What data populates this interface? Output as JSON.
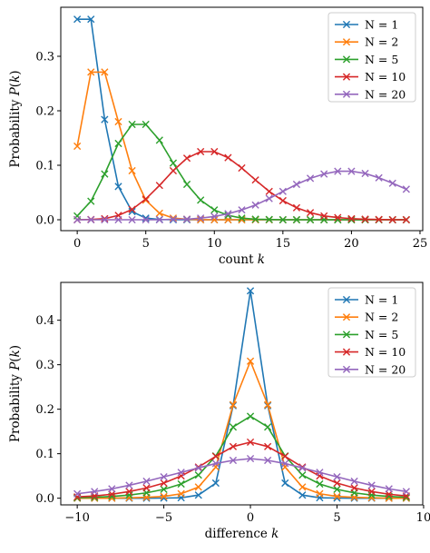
{
  "chart_data": [
    {
      "type": "line",
      "xlabel_text": "count ",
      "xlabel_var": "k",
      "ylabel_text": "Probability ",
      "ylabel_var": "P",
      "ylabel_arg": "k",
      "xlim": [
        -1.2,
        25.2
      ],
      "ylim": [
        -0.02,
        0.39
      ],
      "xticks": [
        0,
        5,
        10,
        15,
        20,
        25
      ],
      "xtick_labels": [
        "0",
        "5",
        "10",
        "15",
        "20",
        "25"
      ],
      "yticks": [
        0.0,
        0.1,
        0.2,
        0.3
      ],
      "ytick_labels": [
        "0.0",
        "0.1",
        "0.2",
        "0.3"
      ],
      "legend_position": "top-right",
      "grid": false,
      "x": [
        0,
        1,
        2,
        3,
        4,
        5,
        6,
        7,
        8,
        9,
        10,
        11,
        12,
        13,
        14,
        15,
        16,
        17,
        18,
        19,
        20,
        21,
        22,
        23,
        24
      ],
      "series": [
        {
          "name": "N = 1",
          "color": "#1f77b4",
          "values": [
            0.368,
            0.368,
            0.184,
            0.061,
            0.015,
            0.003,
            0.0005,
            0,
            0,
            0,
            0,
            0,
            0,
            0,
            0,
            0,
            0,
            0,
            0,
            0,
            0,
            0,
            0,
            0,
            0
          ]
        },
        {
          "name": "N = 2",
          "color": "#ff7f0e",
          "values": [
            0.135,
            0.271,
            0.271,
            0.18,
            0.09,
            0.036,
            0.012,
            0.003,
            0.001,
            0,
            0,
            0,
            0,
            0,
            0,
            0,
            0,
            0,
            0,
            0,
            0,
            0,
            0,
            0,
            0
          ]
        },
        {
          "name": "N = 5",
          "color": "#2ca02c",
          "values": [
            0.007,
            0.034,
            0.084,
            0.14,
            0.175,
            0.175,
            0.146,
            0.104,
            0.065,
            0.036,
            0.018,
            0.008,
            0.003,
            0.001,
            0.0005,
            0,
            0,
            0,
            0,
            0,
            0,
            0,
            0,
            0,
            0
          ]
        },
        {
          "name": "N = 10",
          "color": "#d62728",
          "values": [
            0,
            0.0005,
            0.002,
            0.008,
            0.019,
            0.038,
            0.063,
            0.09,
            0.113,
            0.125,
            0.125,
            0.114,
            0.095,
            0.073,
            0.052,
            0.035,
            0.022,
            0.013,
            0.007,
            0.004,
            0.002,
            0.001,
            0.0005,
            0,
            0
          ]
        },
        {
          "name": "N = 20",
          "color": "#9467bd",
          "values": [
            0,
            0,
            0,
            0,
            0,
            0,
            0,
            0.001,
            0.001,
            0.003,
            0.006,
            0.011,
            0.018,
            0.027,
            0.039,
            0.052,
            0.065,
            0.076,
            0.084,
            0.089,
            0.089,
            0.085,
            0.077,
            0.067,
            0.056
          ]
        }
      ]
    },
    {
      "type": "line",
      "xlabel_text": "difference ",
      "xlabel_var": "k",
      "ylabel_text": "Probability ",
      "ylabel_var": "P",
      "ylabel_arg": "k",
      "xlim": [
        -10.95,
        9.95
      ],
      "ylim": [
        -0.015,
        0.485
      ],
      "xticks": [
        -10,
        -5,
        0,
        5,
        10
      ],
      "xtick_labels": [
        "−10",
        "−5",
        "0",
        "5",
        "10"
      ],
      "yticks": [
        0.0,
        0.1,
        0.2,
        0.3,
        0.4
      ],
      "ytick_labels": [
        "0.0",
        "0.1",
        "0.2",
        "0.3",
        "0.4"
      ],
      "legend_position": "top-right",
      "grid": false,
      "x": [
        -10,
        -9,
        -8,
        -7,
        -6,
        -5,
        -4,
        -3,
        -2,
        -1,
        0,
        1,
        2,
        3,
        4,
        5,
        6,
        7,
        8,
        9
      ],
      "series": [
        {
          "name": "N = 1",
          "color": "#1f77b4",
          "values": [
            0,
            0,
            0,
            0,
            0,
            0.0003,
            0.001,
            0.007,
            0.034,
            0.208,
            0.466,
            0.208,
            0.034,
            0.007,
            0.001,
            0.0003,
            0,
            0,
            0,
            0
          ]
        },
        {
          "name": "N = 2",
          "color": "#ff7f0e",
          "values": [
            0,
            0,
            0,
            0.001,
            0.002,
            0.004,
            0.01,
            0.025,
            0.07,
            0.21,
            0.308,
            0.21,
            0.07,
            0.025,
            0.01,
            0.004,
            0.002,
            0.001,
            0,
            0
          ]
        },
        {
          "name": "N = 5",
          "color": "#2ca02c",
          "values": [
            0.001,
            0.002,
            0.004,
            0.007,
            0.012,
            0.02,
            0.032,
            0.052,
            0.095,
            0.16,
            0.184,
            0.16,
            0.095,
            0.052,
            0.032,
            0.02,
            0.012,
            0.007,
            0.004,
            0.002
          ]
        },
        {
          "name": "N = 10",
          "color": "#d62728",
          "values": [
            0.003,
            0.005,
            0.009,
            0.015,
            0.023,
            0.034,
            0.05,
            0.07,
            0.094,
            0.116,
            0.126,
            0.116,
            0.094,
            0.07,
            0.05,
            0.034,
            0.023,
            0.015,
            0.009,
            0.005
          ]
        },
        {
          "name": "N = 20",
          "color": "#9467bd",
          "values": [
            0.01,
            0.015,
            0.021,
            0.029,
            0.038,
            0.048,
            0.058,
            0.068,
            0.078,
            0.085,
            0.089,
            0.085,
            0.078,
            0.068,
            0.058,
            0.048,
            0.038,
            0.029,
            0.021,
            0.015
          ]
        }
      ]
    }
  ]
}
